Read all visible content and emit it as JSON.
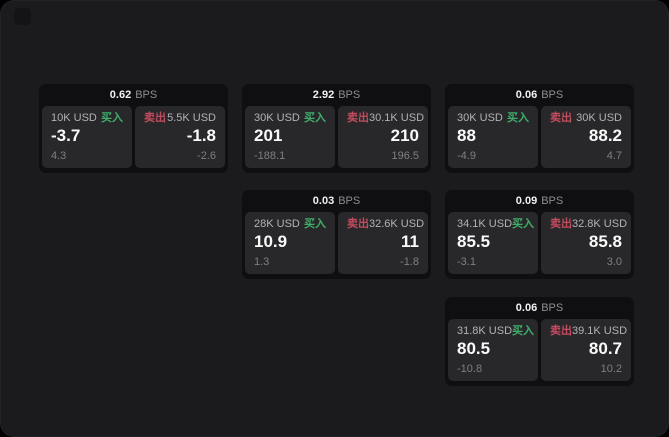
{
  "window": {
    "background": "#1b1b1d"
  },
  "icons": {
    "app_logo": "rounded-square"
  },
  "colors": {
    "buy": "#3fae6b",
    "sell": "#c24b5e"
  },
  "cards": [
    {
      "bps_value": "0.62",
      "bps_unit": "BPS",
      "buy": {
        "amount": "10K USD",
        "label": "买入",
        "price": "-3.7",
        "change": "4.3"
      },
      "sell": {
        "label": "卖出",
        "amount": "5.5K USD",
        "price": "-1.8",
        "change": "-2.6"
      }
    },
    {
      "bps_value": "2.92",
      "bps_unit": "BPS",
      "buy": {
        "amount": "30K USD",
        "label": "买入",
        "price": "201",
        "change": "-188.1"
      },
      "sell": {
        "label": "卖出",
        "amount": "30.1K USD",
        "price": "210",
        "change": "196.5"
      }
    },
    {
      "bps_value": "0.06",
      "bps_unit": "BPS",
      "buy": {
        "amount": "30K USD",
        "label": "买入",
        "price": "88",
        "change": "-4.9"
      },
      "sell": {
        "label": "卖出",
        "amount": "30K USD",
        "price": "88.2",
        "change": "4.7"
      }
    },
    {
      "bps_value": "0.03",
      "bps_unit": "BPS",
      "buy": {
        "amount": "28K USD",
        "label": "买入",
        "price": "10.9",
        "change": "1.3"
      },
      "sell": {
        "label": "卖出",
        "amount": "32.6K USD",
        "price": "11",
        "change": "-1.8"
      }
    },
    {
      "bps_value": "0.09",
      "bps_unit": "BPS",
      "buy": {
        "amount": "34.1K USD",
        "label": "买入",
        "price": "85.5",
        "change": "-3.1"
      },
      "sell": {
        "label": "卖出",
        "amount": "32.8K USD",
        "price": "85.8",
        "change": "3.0"
      }
    },
    {
      "bps_value": "0.06",
      "bps_unit": "BPS",
      "buy": {
        "amount": "31.8K USD",
        "label": "买入",
        "price": "80.5",
        "change": "-10.8"
      },
      "sell": {
        "label": "卖出",
        "amount": "39.1K USD",
        "price": "80.7",
        "change": "10.2"
      }
    }
  ]
}
